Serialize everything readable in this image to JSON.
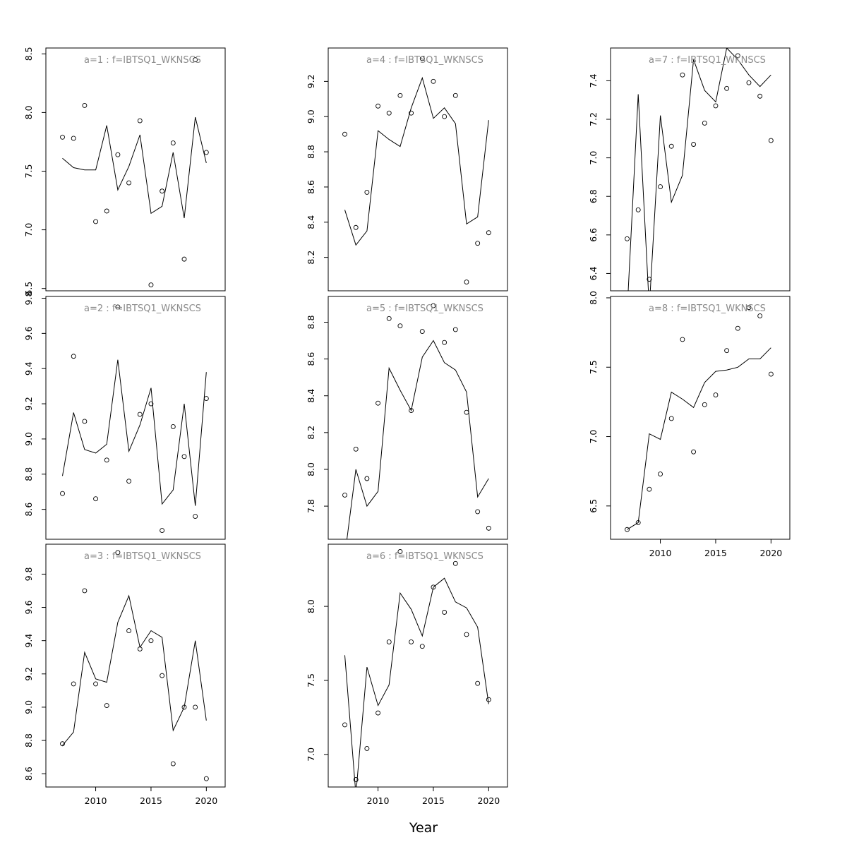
{
  "figure": {
    "xlabel": "Year"
  },
  "chart_data": [
    {
      "type": "line+scatter",
      "title": "a=1 : f=IBTSQ1_WKNSCS",
      "x": [
        2007,
        2008,
        2009,
        2010,
        2011,
        2012,
        2013,
        2014,
        2015,
        2016,
        2017,
        2018,
        2019,
        2020
      ],
      "observed": [
        7.79,
        7.78,
        8.06,
        7.07,
        7.16,
        7.64,
        7.4,
        7.93,
        6.53,
        7.33,
        7.74,
        6.75,
        8.45,
        7.66
      ],
      "fitted": [
        7.61,
        7.53,
        7.51,
        7.51,
        7.89,
        7.34,
        7.54,
        7.81,
        7.14,
        7.2,
        7.66,
        7.1,
        7.96,
        7.57
      ],
      "ylim": [
        6.48,
        8.55
      ],
      "xlim": [
        2005.5,
        2021.7
      ],
      "yticks": [
        6.5,
        7.0,
        7.5,
        8.0,
        8.5
      ],
      "ytick_labels": [
        "6.5",
        "7.0",
        "7.5",
        "8.0",
        "8.5"
      ],
      "xticks": [],
      "xtick_labels": []
    },
    {
      "type": "line+scatter",
      "title": "a=2 : f=IBTSQ1_WKNSCS",
      "x": [
        2007,
        2008,
        2009,
        2010,
        2011,
        2012,
        2013,
        2014,
        2015,
        2016,
        2017,
        2018,
        2019,
        2020
      ],
      "observed": [
        8.69,
        9.47,
        9.1,
        8.66,
        8.88,
        9.75,
        8.76,
        9.14,
        9.2,
        8.48,
        9.07,
        8.9,
        8.56,
        9.23
      ],
      "fitted": [
        8.79,
        9.15,
        8.94,
        8.92,
        8.97,
        9.45,
        8.93,
        9.08,
        9.29,
        8.63,
        8.71,
        9.2,
        8.62,
        9.38
      ],
      "ylim": [
        8.43,
        9.81
      ],
      "xlim": [
        2005.5,
        2021.7
      ],
      "yticks": [
        8.6,
        8.8,
        9.0,
        9.2,
        9.4,
        9.6,
        9.8
      ],
      "ytick_labels": [
        "8.6",
        "8.8",
        "9.0",
        "9.2",
        "9.4",
        "9.6",
        "9.8"
      ],
      "xticks": [],
      "xtick_labels": []
    },
    {
      "type": "line+scatter",
      "title": "a=3 : f=IBTSQ1_WKNSCS",
      "x": [
        2007,
        2008,
        2009,
        2010,
        2011,
        2012,
        2013,
        2014,
        2015,
        2016,
        2017,
        2018,
        2019,
        2020
      ],
      "observed": [
        8.78,
        9.14,
        9.7,
        9.14,
        9.01,
        9.93,
        9.46,
        9.35,
        9.4,
        9.19,
        8.66,
        9.0,
        9.0,
        8.57
      ],
      "fitted": [
        8.77,
        8.85,
        9.33,
        9.17,
        9.15,
        9.51,
        9.67,
        9.36,
        9.46,
        9.42,
        8.86,
        9.0,
        9.4,
        8.92
      ],
      "ylim": [
        8.52,
        9.98
      ],
      "xlim": [
        2005.5,
        2021.7
      ],
      "yticks": [
        8.6,
        8.8,
        9.0,
        9.2,
        9.4,
        9.6,
        9.8
      ],
      "ytick_labels": [
        "8.6",
        "8.8",
        "9.0",
        "9.2",
        "9.4",
        "9.6",
        "9.8"
      ],
      "xticks": [
        2010,
        2015,
        2020
      ],
      "xtick_labels": [
        "2010",
        "2015",
        "2020"
      ]
    },
    {
      "type": "line+scatter",
      "title": "a=4 : f=IBTSQ1_WKNSCS",
      "x": [
        2007,
        2008,
        2009,
        2010,
        2011,
        2012,
        2013,
        2014,
        2015,
        2016,
        2017,
        2018,
        2019,
        2020
      ],
      "observed": [
        8.9,
        8.37,
        8.57,
        9.06,
        9.02,
        9.12,
        9.02,
        9.33,
        9.2,
        9.0,
        9.12,
        8.06,
        8.28,
        8.34
      ],
      "fitted": [
        8.47,
        8.27,
        8.35,
        8.92,
        8.87,
        8.83,
        9.05,
        9.22,
        8.99,
        9.05,
        8.96,
        8.39,
        8.43,
        8.98
      ],
      "ylim": [
        8.01,
        9.39
      ],
      "xlim": [
        2005.5,
        2021.7
      ],
      "yticks": [
        8.2,
        8.4,
        8.6,
        8.8,
        9.0,
        9.2
      ],
      "ytick_labels": [
        "8.2",
        "8.4",
        "8.6",
        "8.8",
        "9.0",
        "9.2"
      ],
      "xticks": [],
      "xtick_labels": []
    },
    {
      "type": "line+scatter",
      "title": "a=5 : f=IBTSQ1_WKNSCS",
      "x": [
        2007,
        2008,
        2009,
        2010,
        2011,
        2012,
        2013,
        2014,
        2015,
        2016,
        2017,
        2018,
        2019,
        2020
      ],
      "observed": [
        7.86,
        8.11,
        7.95,
        8.36,
        8.82,
        8.78,
        8.32,
        8.75,
        8.89,
        8.69,
        8.76,
        8.31,
        7.77,
        7.68
      ],
      "fitted": [
        7.53,
        8.0,
        7.8,
        7.88,
        8.55,
        8.43,
        8.32,
        8.61,
        8.7,
        8.58,
        8.54,
        8.42,
        7.85,
        7.95
      ],
      "ylim": [
        7.62,
        8.94
      ],
      "xlim": [
        2005.5,
        2021.7
      ],
      "yticks": [
        7.8,
        8.0,
        8.2,
        8.4,
        8.6,
        8.8
      ],
      "ytick_labels": [
        "7.8",
        "8.0",
        "8.2",
        "8.4",
        "8.6",
        "8.8"
      ],
      "xticks": [],
      "xtick_labels": []
    },
    {
      "type": "line+scatter",
      "title": "a=6 : f=IBTSQ1_WKNSCS",
      "x": [
        2007,
        2008,
        2009,
        2010,
        2011,
        2012,
        2013,
        2014,
        2015,
        2016,
        2017,
        2018,
        2019,
        2020
      ],
      "observed": [
        7.2,
        6.83,
        7.04,
        7.28,
        7.76,
        8.37,
        7.76,
        7.73,
        8.13,
        7.96,
        8.29,
        7.81,
        7.48,
        7.37
      ],
      "fitted": [
        7.67,
        6.73,
        7.59,
        7.33,
        7.47,
        8.09,
        7.98,
        7.8,
        8.13,
        8.19,
        8.03,
        7.99,
        7.86,
        7.34
      ],
      "ylim": [
        6.78,
        8.42
      ],
      "xlim": [
        2005.5,
        2021.7
      ],
      "yticks": [
        7.0,
        7.5,
        8.0
      ],
      "ytick_labels": [
        "7.0",
        "7.5",
        "8.0"
      ],
      "xticks": [
        2010,
        2015,
        2020
      ],
      "xtick_labels": [
        "2010",
        "2015",
        "2020"
      ]
    },
    {
      "type": "line+scatter",
      "title": "a=7 : f=IBTSQ1_WKNSCS",
      "x": [
        2007,
        2008,
        2009,
        2010,
        2011,
        2012,
        2013,
        2014,
        2015,
        2016,
        2017,
        2018,
        2019,
        2020
      ],
      "observed": [
        6.58,
        6.73,
        6.37,
        6.85,
        7.06,
        7.43,
        7.07,
        7.18,
        7.27,
        7.36,
        7.53,
        7.39,
        7.32,
        7.09
      ],
      "fitted": [
        6.2,
        7.33,
        6.22,
        7.22,
        6.77,
        6.91,
        7.51,
        7.35,
        7.29,
        7.57,
        7.51,
        7.43,
        7.37,
        7.43
      ],
      "ylim": [
        6.31,
        7.57
      ],
      "xlim": [
        2005.5,
        2021.7
      ],
      "yticks": [
        6.4,
        6.6,
        6.8,
        7.0,
        7.2,
        7.4
      ],
      "ytick_labels": [
        "6.4",
        "6.6",
        "6.8",
        "7.0",
        "7.2",
        "7.4"
      ],
      "xticks": [],
      "xtick_labels": []
    },
    {
      "type": "line+scatter",
      "title": "a=8 : f=IBTSQ1_WKNSCS",
      "x": [
        2007,
        2008,
        2009,
        2010,
        2011,
        2012,
        2013,
        2014,
        2015,
        2016,
        2017,
        2018,
        2019,
        2020
      ],
      "observed": [
        6.33,
        6.38,
        6.62,
        6.73,
        7.13,
        7.7,
        6.89,
        7.23,
        7.3,
        7.62,
        7.78,
        7.93,
        7.87,
        7.45
      ],
      "fitted": [
        6.33,
        6.38,
        7.02,
        6.98,
        7.32,
        7.27,
        7.21,
        7.39,
        7.47,
        7.48,
        7.5,
        7.56,
        7.56,
        7.64
      ],
      "ylim": [
        6.26,
        8.01
      ],
      "xlim": [
        2005.5,
        2021.7
      ],
      "yticks": [
        6.5,
        7.0,
        7.5,
        8.0
      ],
      "ytick_labels": [
        "6.5",
        "7.0",
        "7.5",
        "8.0"
      ],
      "xticks": [
        2010,
        2015,
        2020
      ],
      "xtick_labels": [
        "2010",
        "2015",
        "2020"
      ]
    }
  ]
}
